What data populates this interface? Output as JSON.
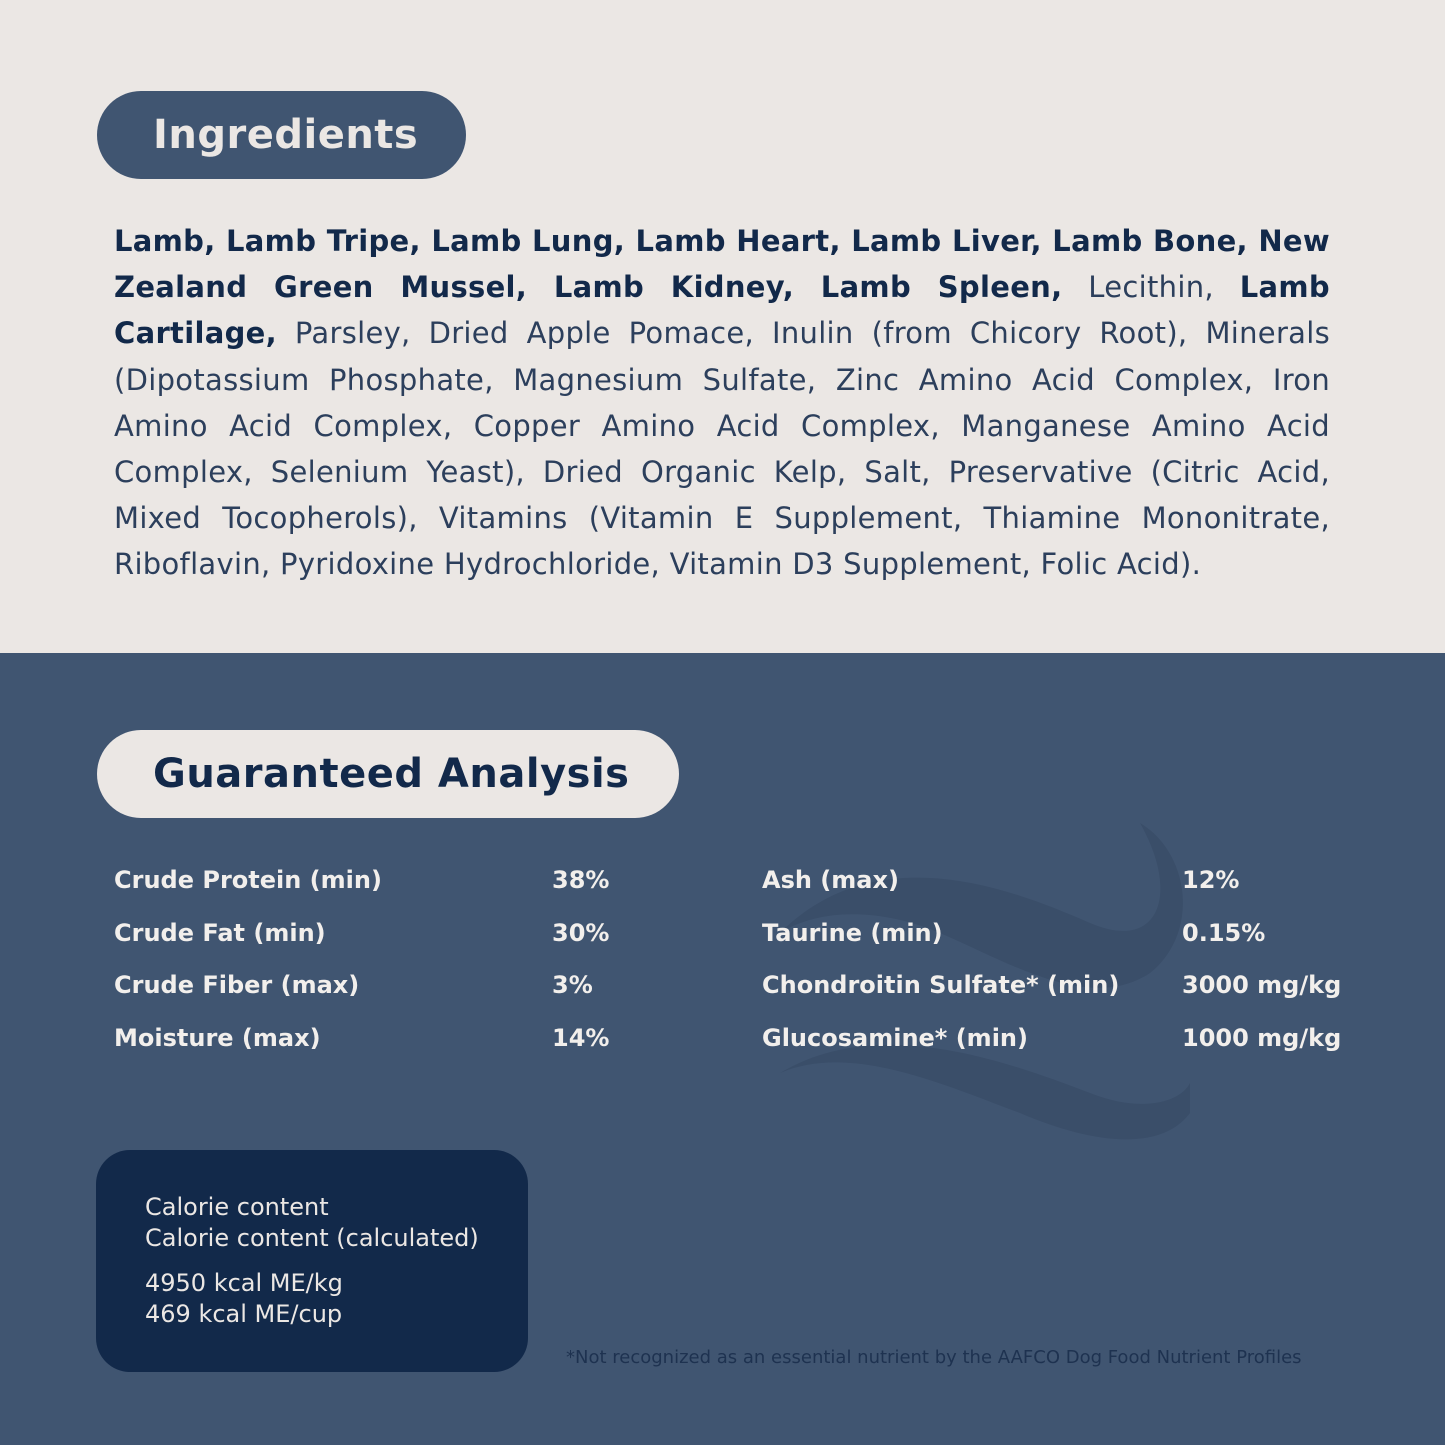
{
  "ingredients": {
    "title": "Ingredients",
    "segments": [
      {
        "text": "Lamb, Lamb Tripe, Lamb Lung, Lamb Heart, Lamb Liver, Lamb Bone, New Zealand Green Mussel, Lamb Kidney, Lamb Spleen,",
        "bold": true
      },
      {
        "text": " Lecithin, ",
        "bold": false
      },
      {
        "text": "Lamb Cartilage,",
        "bold": true
      },
      {
        "text": " Parsley, Dried Apple Pomace, Inulin (from Chicory Root), Minerals (Dipotassium Phosphate, Magnesium Sulfate, Zinc Amino Acid Complex, Iron Amino Acid Complex, Copper Amino Acid Complex, Manganese Amino Acid Complex, Selenium Yeast), Dried Organic Kelp, Salt, Preservative (Citric Acid, Mixed Tocopherols), Vitamins (Vitamin E Supplement, Thiamine Mononitrate, Riboflavin, Pyridoxine Hydrochloride, Vitamin D3 Supplement, Folic Acid).",
        "bold": false
      }
    ]
  },
  "analysis": {
    "title": "Guaranteed Analysis",
    "left": [
      {
        "label": "Crude Protein (min)",
        "value": "38%"
      },
      {
        "label": "Crude Fat (min)",
        "value": "30%"
      },
      {
        "label": "Crude Fiber (max)",
        "value": "3%"
      },
      {
        "label": "Moisture (max)",
        "value": "14%"
      }
    ],
    "right": [
      {
        "label": "Ash (max)",
        "value": "12%"
      },
      {
        "label": "Taurine (min)",
        "value": "0.15%"
      },
      {
        "label": "Chondroitin Sulfate* (min)",
        "value": "3000 mg/kg"
      },
      {
        "label": "Glucosamine* (min)",
        "value": "1000 mg/kg"
      }
    ]
  },
  "calorie": {
    "line1": "Calorie content",
    "line2": "Calorie content (calculated)",
    "line3": "4950 kcal ME/kg",
    "line4": "469 kcal ME/cup"
  },
  "footnote": "*Not recognized as an essential nutrient by the AAFCO Dog Food Nutrient Profiles",
  "colors": {
    "light_bg": "#ebe7e4",
    "blue_bg": "#405571",
    "navy": "#12294a"
  },
  "decoration": "wave-icon"
}
